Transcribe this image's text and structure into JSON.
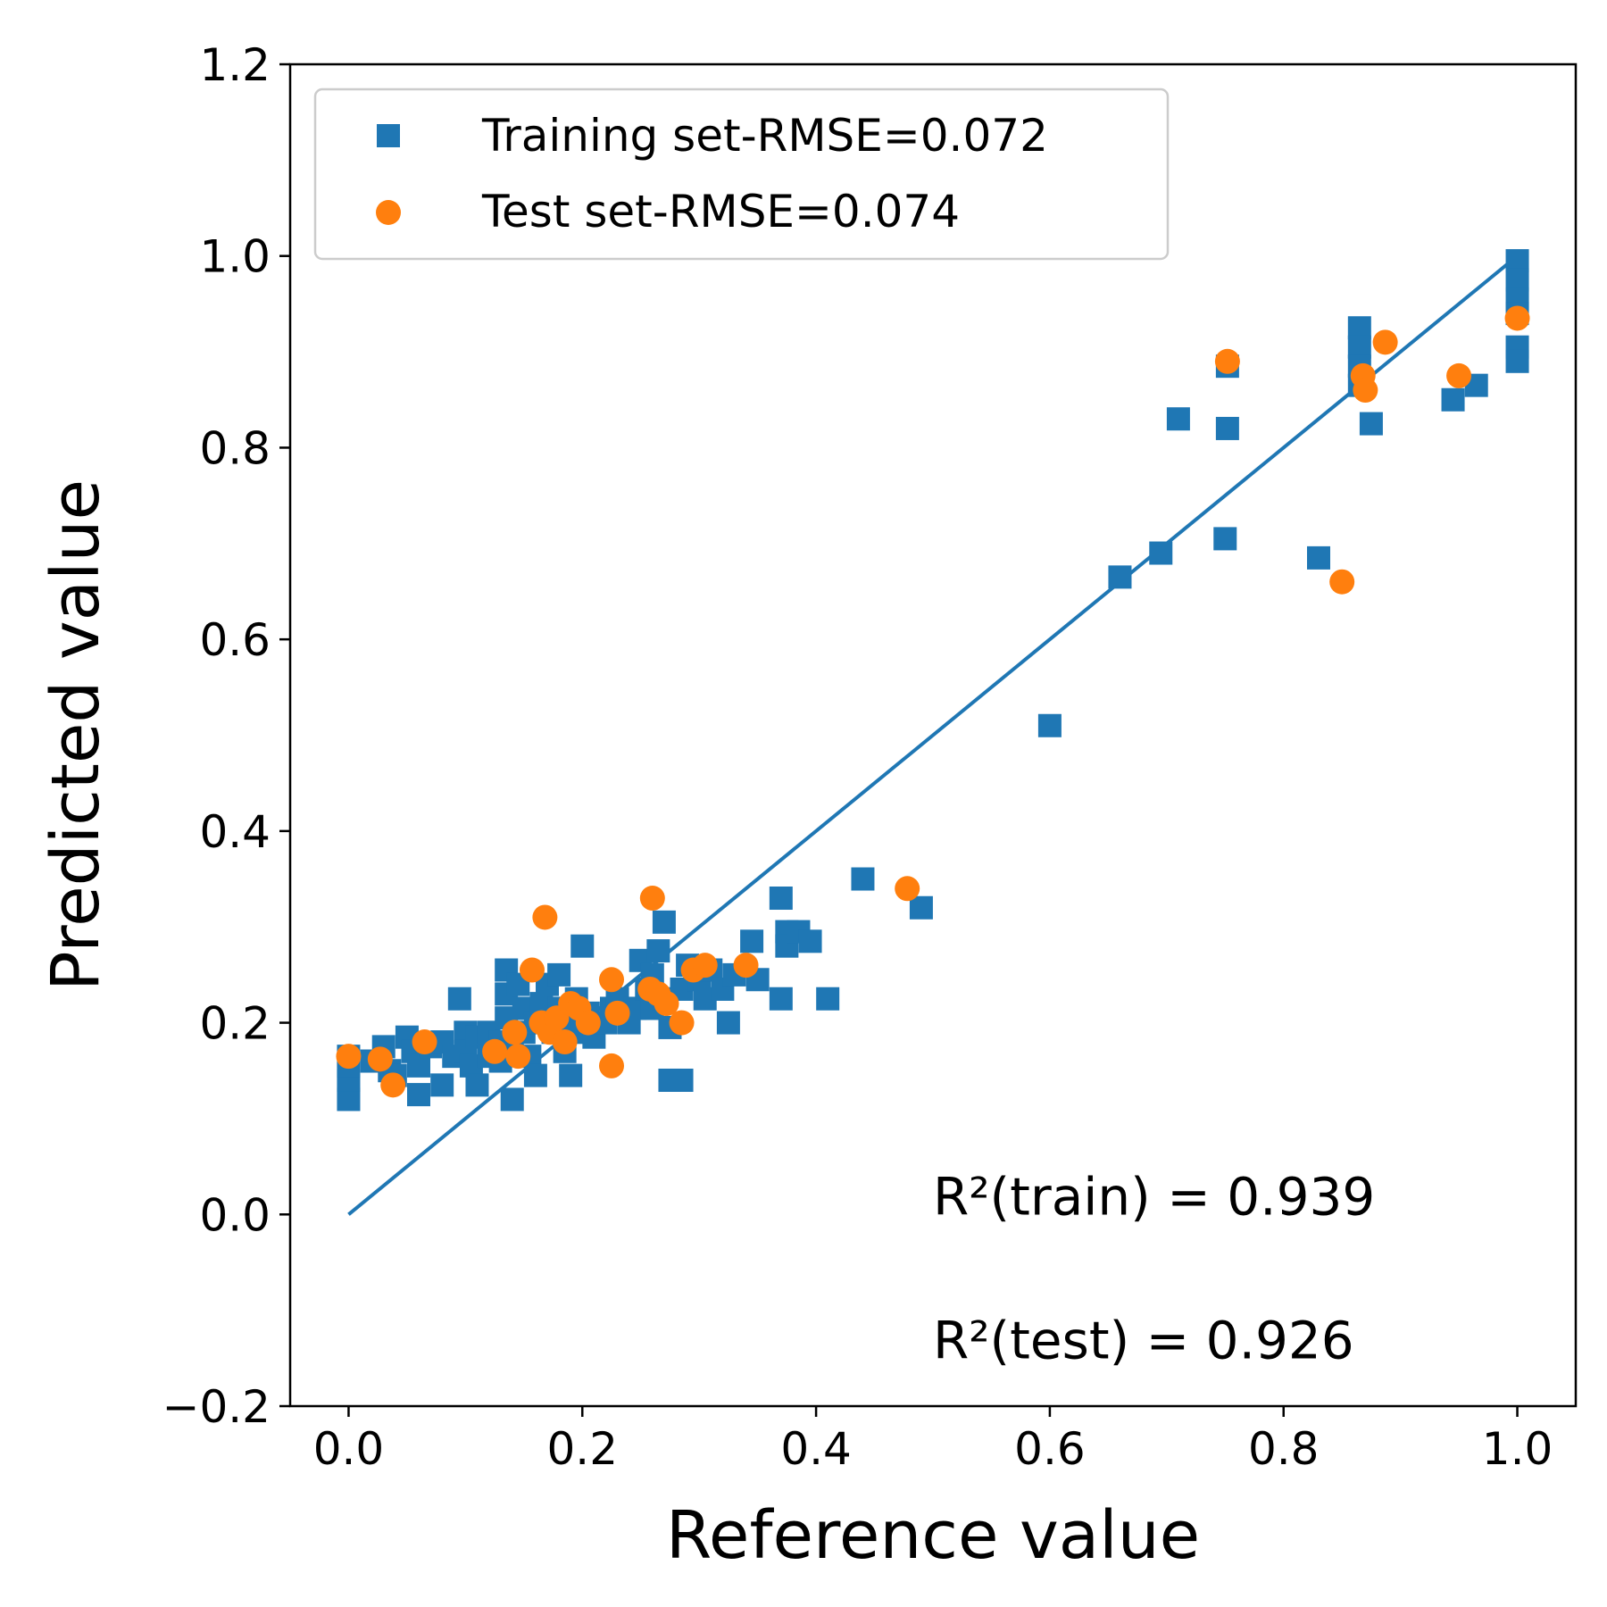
{
  "chart_data": {
    "type": "scatter",
    "xlabel": "Reference value",
    "ylabel": "Predicted value",
    "xlim": [
      -0.05,
      1.05
    ],
    "ylim": [
      -0.2,
      1.2
    ],
    "xticks": [
      "0.0",
      "0.2",
      "0.4",
      "0.6",
      "0.8",
      "1.0"
    ],
    "yticks": [
      "−0.2",
      "0.0",
      "0.2",
      "0.4",
      "0.6",
      "0.8",
      "1.0",
      "1.2"
    ],
    "grid": false,
    "legend_position": "upper-left",
    "reference_line": {
      "x": [
        0,
        1
      ],
      "y": [
        0,
        1
      ],
      "color": "#1f77b4"
    },
    "series": [
      {
        "name": "Training set-RMSE=0.072",
        "marker": "square",
        "color": "#1f77b4",
        "points": [
          [
            0.0,
            0.12
          ],
          [
            0.0,
            0.14
          ],
          [
            0.0,
            0.155
          ],
          [
            0.0,
            0.165
          ],
          [
            0.02,
            0.16
          ],
          [
            0.03,
            0.175
          ],
          [
            0.035,
            0.15
          ],
          [
            0.04,
            0.145
          ],
          [
            0.05,
            0.185
          ],
          [
            0.055,
            0.17
          ],
          [
            0.06,
            0.155
          ],
          [
            0.06,
            0.125
          ],
          [
            0.07,
            0.175
          ],
          [
            0.08,
            0.18
          ],
          [
            0.08,
            0.135
          ],
          [
            0.09,
            0.165
          ],
          [
            0.095,
            0.225
          ],
          [
            0.1,
            0.19
          ],
          [
            0.1,
            0.17
          ],
          [
            0.105,
            0.155
          ],
          [
            0.11,
            0.135
          ],
          [
            0.11,
            0.185
          ],
          [
            0.12,
            0.19
          ],
          [
            0.12,
            0.165
          ],
          [
            0.13,
            0.18
          ],
          [
            0.13,
            0.16
          ],
          [
            0.135,
            0.255
          ],
          [
            0.135,
            0.23
          ],
          [
            0.135,
            0.205
          ],
          [
            0.14,
            0.175
          ],
          [
            0.14,
            0.12
          ],
          [
            0.145,
            0.24
          ],
          [
            0.15,
            0.215
          ],
          [
            0.15,
            0.19
          ],
          [
            0.155,
            0.165
          ],
          [
            0.16,
            0.145
          ],
          [
            0.16,
            0.2
          ],
          [
            0.165,
            0.22
          ],
          [
            0.17,
            0.24
          ],
          [
            0.175,
            0.19
          ],
          [
            0.18,
            0.25
          ],
          [
            0.18,
            0.215
          ],
          [
            0.185,
            0.17
          ],
          [
            0.19,
            0.2
          ],
          [
            0.19,
            0.145
          ],
          [
            0.195,
            0.225
          ],
          [
            0.2,
            0.28
          ],
          [
            0.2,
            0.19
          ],
          [
            0.205,
            0.21
          ],
          [
            0.21,
            0.185
          ],
          [
            0.22,
            0.2
          ],
          [
            0.225,
            0.215
          ],
          [
            0.23,
            0.225
          ],
          [
            0.24,
            0.2
          ],
          [
            0.245,
            0.215
          ],
          [
            0.25,
            0.265
          ],
          [
            0.255,
            0.235
          ],
          [
            0.26,
            0.25
          ],
          [
            0.26,
            0.215
          ],
          [
            0.265,
            0.275
          ],
          [
            0.27,
            0.305
          ],
          [
            0.27,
            0.225
          ],
          [
            0.275,
            0.195
          ],
          [
            0.275,
            0.14
          ],
          [
            0.285,
            0.14
          ],
          [
            0.285,
            0.235
          ],
          [
            0.29,
            0.26
          ],
          [
            0.3,
            0.245
          ],
          [
            0.305,
            0.225
          ],
          [
            0.31,
            0.255
          ],
          [
            0.32,
            0.235
          ],
          [
            0.325,
            0.2
          ],
          [
            0.33,
            0.25
          ],
          [
            0.345,
            0.285
          ],
          [
            0.35,
            0.245
          ],
          [
            0.37,
            0.33
          ],
          [
            0.37,
            0.225
          ],
          [
            0.375,
            0.295
          ],
          [
            0.375,
            0.28
          ],
          [
            0.385,
            0.295
          ],
          [
            0.395,
            0.285
          ],
          [
            0.41,
            0.225
          ],
          [
            0.44,
            0.35
          ],
          [
            0.49,
            0.32
          ],
          [
            0.6,
            0.51
          ],
          [
            0.66,
            0.665
          ],
          [
            0.695,
            0.69
          ],
          [
            0.71,
            0.83
          ],
          [
            0.75,
            0.705
          ],
          [
            0.752,
            0.82
          ],
          [
            0.752,
            0.885
          ],
          [
            0.83,
            0.685
          ],
          [
            0.865,
            0.925
          ],
          [
            0.865,
            0.905
          ],
          [
            0.865,
            0.885
          ],
          [
            0.865,
            0.865
          ],
          [
            0.875,
            0.825
          ],
          [
            0.945,
            0.85
          ],
          [
            0.965,
            0.865
          ],
          [
            1.0,
            0.995
          ],
          [
            1.0,
            0.975
          ],
          [
            1.0,
            0.955
          ],
          [
            1.0,
            0.94
          ],
          [
            1.0,
            0.905
          ],
          [
            1.0,
            0.89
          ]
        ]
      },
      {
        "name": "Test set-RMSE=0.074",
        "marker": "circle",
        "color": "#ff7f0e",
        "points": [
          [
            0.0,
            0.165
          ],
          [
            0.027,
            0.162
          ],
          [
            0.038,
            0.135
          ],
          [
            0.065,
            0.18
          ],
          [
            0.125,
            0.17
          ],
          [
            0.142,
            0.19
          ],
          [
            0.145,
            0.165
          ],
          [
            0.157,
            0.255
          ],
          [
            0.165,
            0.2
          ],
          [
            0.168,
            0.31
          ],
          [
            0.172,
            0.19
          ],
          [
            0.178,
            0.205
          ],
          [
            0.185,
            0.18
          ],
          [
            0.19,
            0.22
          ],
          [
            0.197,
            0.215
          ],
          [
            0.205,
            0.2
          ],
          [
            0.225,
            0.155
          ],
          [
            0.225,
            0.245
          ],
          [
            0.23,
            0.21
          ],
          [
            0.258,
            0.235
          ],
          [
            0.26,
            0.33
          ],
          [
            0.265,
            0.23
          ],
          [
            0.272,
            0.22
          ],
          [
            0.285,
            0.2
          ],
          [
            0.295,
            0.255
          ],
          [
            0.305,
            0.26
          ],
          [
            0.34,
            0.26
          ],
          [
            0.478,
            0.34
          ],
          [
            0.752,
            0.89
          ],
          [
            0.85,
            0.66
          ],
          [
            0.868,
            0.875
          ],
          [
            0.87,
            0.86
          ],
          [
            0.887,
            0.91
          ],
          [
            0.95,
            0.875
          ],
          [
            1.0,
            0.935
          ]
        ]
      }
    ],
    "annotations": [
      {
        "text": "R²(train) = 0.939",
        "x": 0.5,
        "y": 0.0
      },
      {
        "text": "R²(test) = 0.926",
        "x": 0.5,
        "y": -0.15
      }
    ]
  }
}
